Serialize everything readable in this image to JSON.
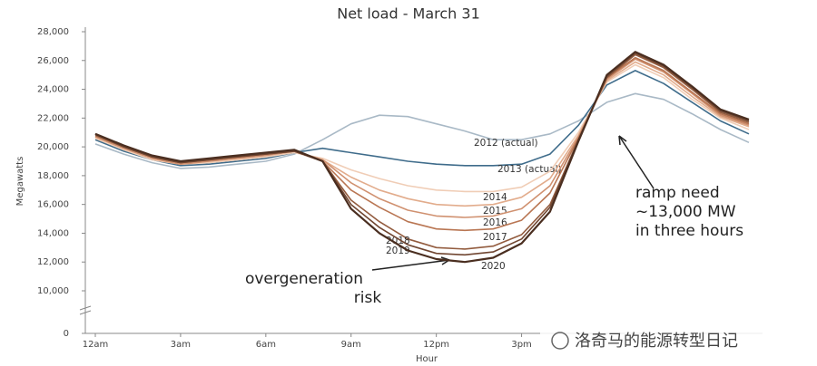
{
  "chart_data": {
    "type": "line",
    "title": "Net load - March 31",
    "x_label": "Hour",
    "y_label": "Megawatts",
    "x": [
      0,
      1,
      2,
      3,
      4,
      5,
      6,
      7,
      8,
      9,
      10,
      11,
      12,
      13,
      14,
      15,
      16,
      17,
      18,
      19,
      20,
      21,
      22,
      23
    ],
    "xlim": [
      0,
      23
    ],
    "xticks": [
      {
        "value": 0,
        "label": "12am"
      },
      {
        "value": 3,
        "label": "3am"
      },
      {
        "value": 6,
        "label": "6am"
      },
      {
        "value": 9,
        "label": "9am"
      },
      {
        "value": 12,
        "label": "12pm"
      },
      {
        "value": 15,
        "label": "3pm"
      }
    ],
    "ylim": [
      0,
      28000
    ],
    "y_axis_break": [
      0,
      10000
    ],
    "yticks": [
      0,
      {
        "value": 10000,
        "label": "10,000"
      },
      {
        "value": 12000,
        "label": "12,000"
      },
      {
        "value": 14000,
        "label": "14,000"
      },
      {
        "value": 16000,
        "label": "16,000"
      },
      {
        "value": 18000,
        "label": "18,000"
      },
      {
        "value": 20000,
        "label": "20,000"
      },
      {
        "value": 22000,
        "label": "22,000"
      },
      {
        "value": 24000,
        "label": "24,000"
      },
      {
        "value": 26000,
        "label": "26,000"
      },
      {
        "value": 28000,
        "label": "28,000"
      }
    ],
    "series": [
      {
        "name": "2012 (actual)",
        "color": "#a9b9c6",
        "values": [
          20200,
          19500,
          18900,
          18500,
          18600,
          18800,
          19000,
          19500,
          20500,
          21600,
          22200,
          22100,
          21600,
          21100,
          20500,
          20500,
          20900,
          21800,
          23100,
          23700,
          23300,
          22300,
          21200,
          20300
        ]
      },
      {
        "name": "2013 (actual)",
        "color": "#3f6c8b",
        "values": [
          20500,
          19700,
          19100,
          18700,
          18800,
          19000,
          19200,
          19600,
          19900,
          19600,
          19300,
          19000,
          18800,
          18700,
          18700,
          18800,
          19500,
          21500,
          24300,
          25300,
          24400,
          23100,
          21800,
          20900
        ]
      },
      {
        "name": "2014",
        "color": "#f0cdb6",
        "values": [
          20600,
          19800,
          19100,
          18800,
          18900,
          19100,
          19300,
          19600,
          19200,
          18400,
          17800,
          17300,
          17000,
          16900,
          16900,
          17200,
          18300,
          21000,
          24500,
          25700,
          24800,
          23300,
          22000,
          21200
        ]
      },
      {
        "name": "2015",
        "color": "#e2ac8c",
        "values": [
          20700,
          19900,
          19200,
          18800,
          19000,
          19200,
          19400,
          19700,
          19100,
          17900,
          17000,
          16400,
          16000,
          15900,
          16000,
          16500,
          17800,
          20800,
          24600,
          25900,
          25000,
          23500,
          22100,
          21400
        ]
      },
      {
        "name": "2016",
        "color": "#d09170",
        "values": [
          20700,
          19900,
          19200,
          18800,
          19000,
          19200,
          19400,
          19700,
          19100,
          17500,
          16400,
          15600,
          15200,
          15100,
          15200,
          15700,
          17300,
          20700,
          24700,
          26100,
          25200,
          23700,
          22200,
          21500
        ]
      },
      {
        "name": "2017",
        "color": "#b97653",
        "values": [
          20800,
          20000,
          19300,
          18900,
          19100,
          19300,
          19500,
          19700,
          19000,
          17000,
          15800,
          14800,
          14300,
          14200,
          14300,
          14900,
          16800,
          20600,
          24800,
          26200,
          25300,
          23800,
          22300,
          21600
        ]
      },
      {
        "name": "2018",
        "color": "#935c3f",
        "values": [
          20800,
          20000,
          19300,
          18900,
          19100,
          19300,
          19500,
          19700,
          19000,
          16300,
          14800,
          13600,
          13000,
          12900,
          13100,
          13900,
          16000,
          20500,
          24800,
          26400,
          25500,
          24000,
          22400,
          21700
        ]
      },
      {
        "name": "2019",
        "color": "#704631",
        "values": [
          20900,
          20000,
          19300,
          18900,
          19100,
          19300,
          19500,
          19700,
          19000,
          16000,
          14400,
          13200,
          12600,
          12500,
          12700,
          13600,
          15800,
          20500,
          24900,
          26500,
          25600,
          24100,
          22500,
          21800
        ]
      },
      {
        "name": "2020",
        "color": "#4a2e20",
        "values": [
          20900,
          20100,
          19400,
          19000,
          19200,
          19400,
          19600,
          19800,
          19000,
          15700,
          14000,
          12800,
          12200,
          12000,
          12300,
          13300,
          15500,
          20400,
          25000,
          26600,
          25700,
          24200,
          22600,
          21900
        ]
      }
    ],
    "annotations": [
      [
        "ramp need",
        "~13,000 MW",
        "in three hours"
      ],
      [
        "overgeneration",
        "risk"
      ]
    ],
    "watermark": "洛奇马的能源转型日记"
  }
}
